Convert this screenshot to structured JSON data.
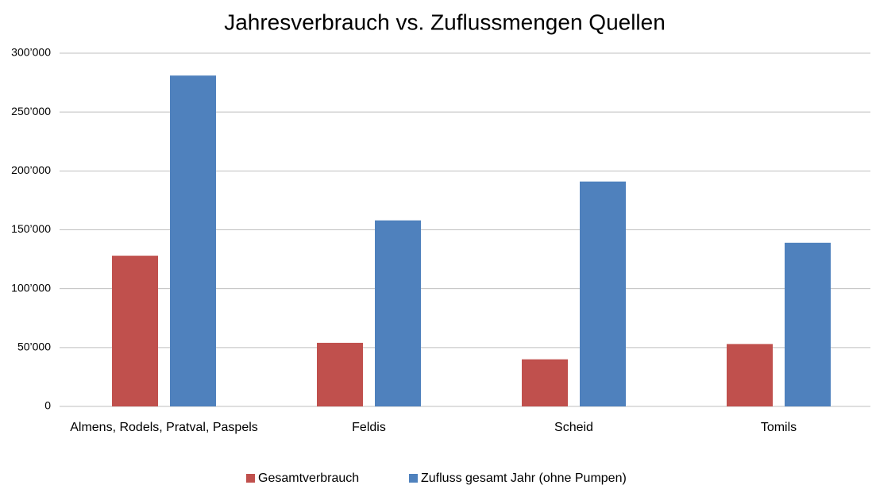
{
  "chart_data": {
    "type": "bar",
    "title": "Jahresverbrauch vs. Zuflussmengen Quellen",
    "categories": [
      "Almens, Rodels, Pratval, Paspels",
      "Feldis",
      "Scheid",
      "Tomils"
    ],
    "series": [
      {
        "name": "Gesamtverbrauch",
        "color": "#c0504d",
        "values": [
          128000,
          54000,
          40000,
          53000
        ]
      },
      {
        "name": "Zufluss gesamt Jahr (ohne Pumpen)",
        "color": "#4f81bd",
        "values": [
          281000,
          158000,
          191000,
          139000
        ]
      }
    ],
    "ylim": [
      0,
      300000
    ],
    "yticks": [
      0,
      {
        "value": 50000,
        "label": "50’000"
      },
      {
        "value": 100000,
        "label": "100’000"
      },
      {
        "value": 150000,
        "label": "150’000"
      },
      {
        "value": 200000,
        "label": "200’000"
      },
      {
        "value": 250000,
        "label": "250’000"
      },
      {
        "value": 300000,
        "label": "300’000"
      }
    ],
    "grid": true,
    "legend": "bottom"
  }
}
